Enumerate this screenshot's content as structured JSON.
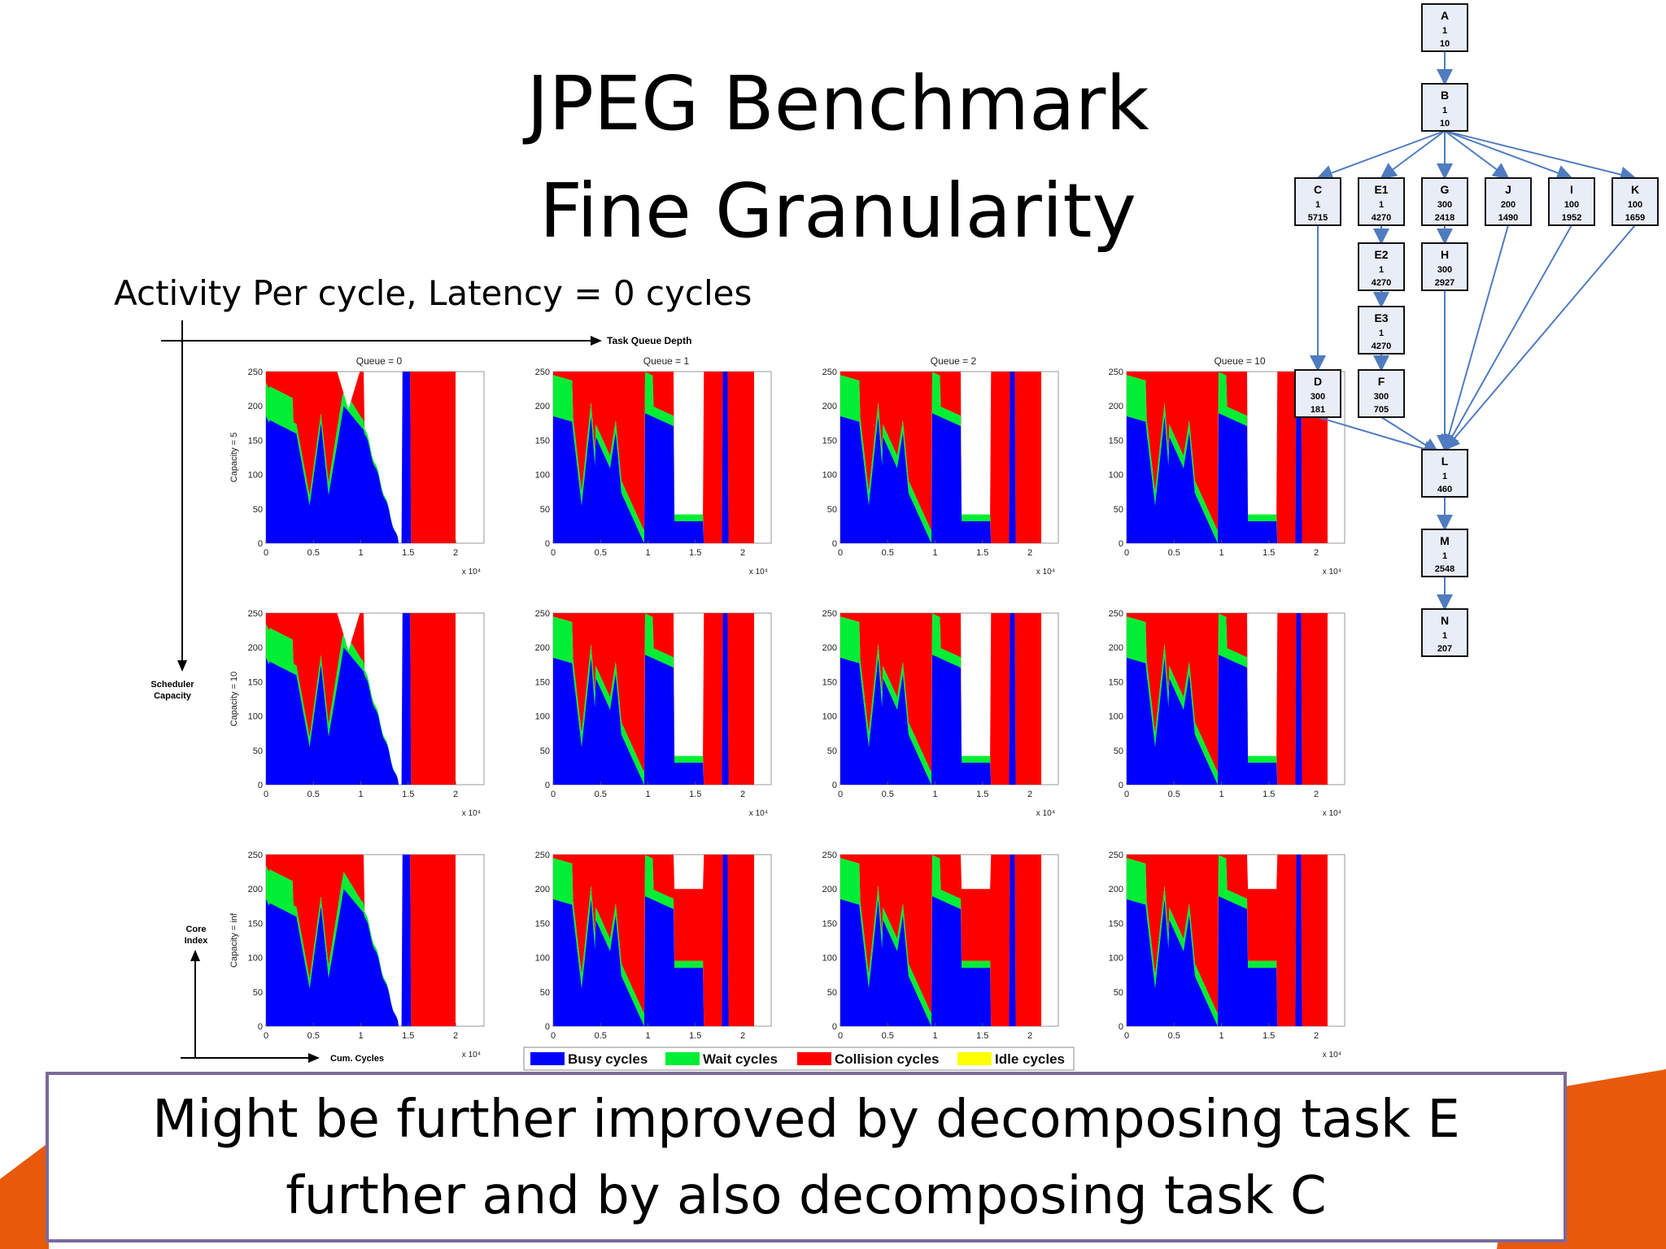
{
  "slide": {
    "title_line1": "JPEG Benchmark",
    "title_line2": "Fine Granularity",
    "subtitle": "Activity Per cycle, Latency = 0 cycles",
    "note_line1": "Might be further improved by decomposing task E",
    "note_line2": "further and by also decomposing task C",
    "decor_color": "#e8590c"
  },
  "figure": {
    "top_axis_label": "Task Queue Depth",
    "left_axis_label_line1": "Scheduler",
    "left_axis_label_line2": "Capacity",
    "corner_y_line1": "Core",
    "corner_y_line2": "Index",
    "corner_x": "Cum. Cycles"
  },
  "chart_data": {
    "type": "area",
    "grid_columns": [
      "Queue = 0",
      "Queue = 1",
      "Queue = 2",
      "Queue = 10"
    ],
    "grid_rows": [
      "Capacity = 5",
      "Capacity = 10",
      "Capacity = inf"
    ],
    "y_ticks": [
      "0",
      "50",
      "100",
      "150",
      "200",
      "250"
    ],
    "x_ticks": [
      "0",
      "0.5",
      "1",
      "1.5",
      "2"
    ],
    "x_exponent": "x 10⁴",
    "ylim": [
      0,
      250
    ],
    "xlim": [
      0,
      2.3
    ],
    "legend": [
      {
        "name": "Busy cycles",
        "color": "#0000ff"
      },
      {
        "name": "Wait cycles",
        "color": "#00ee33"
      },
      {
        "name": "Collision cycles",
        "color": "#ff0000"
      },
      {
        "name": "Idle cycles",
        "color": "#ffff00"
      }
    ],
    "legend_position": "bottom"
  },
  "task_graph": {
    "nodes": [
      {
        "id": "A",
        "v1": "1",
        "v2": "10"
      },
      {
        "id": "B",
        "v1": "1",
        "v2": "10"
      },
      {
        "id": "C",
        "v1": "1",
        "v2": "5715"
      },
      {
        "id": "E1",
        "v1": "1",
        "v2": "4270"
      },
      {
        "id": "G",
        "v1": "300",
        "v2": "2418"
      },
      {
        "id": "J",
        "v1": "200",
        "v2": "1490"
      },
      {
        "id": "I",
        "v1": "100",
        "v2": "1952"
      },
      {
        "id": "K",
        "v1": "100",
        "v2": "1659"
      },
      {
        "id": "E2",
        "v1": "1",
        "v2": "4270"
      },
      {
        "id": "H",
        "v1": "300",
        "v2": "2927"
      },
      {
        "id": "E3",
        "v1": "1",
        "v2": "4270"
      },
      {
        "id": "D",
        "v1": "300",
        "v2": "181"
      },
      {
        "id": "F",
        "v1": "300",
        "v2": "705"
      },
      {
        "id": "L",
        "v1": "1",
        "v2": "460"
      },
      {
        "id": "M",
        "v1": "1",
        "v2": "2548"
      },
      {
        "id": "N",
        "v1": "1",
        "v2": "207"
      }
    ],
    "edges": [
      [
        "A",
        "B"
      ],
      [
        "B",
        "C"
      ],
      [
        "B",
        "E1"
      ],
      [
        "B",
        "G"
      ],
      [
        "B",
        "J"
      ],
      [
        "B",
        "I"
      ],
      [
        "B",
        "K"
      ],
      [
        "E1",
        "E2"
      ],
      [
        "E2",
        "E3"
      ],
      [
        "E3",
        "F"
      ],
      [
        "G",
        "H"
      ],
      [
        "C",
        "D"
      ],
      [
        "D",
        "L"
      ],
      [
        "F",
        "L"
      ],
      [
        "H",
        "L"
      ],
      [
        "J",
        "L"
      ],
      [
        "I",
        "L"
      ],
      [
        "K",
        "L"
      ],
      [
        "L",
        "M"
      ],
      [
        "M",
        "N"
      ]
    ],
    "node_fill": "#e9edf7",
    "edge_color": "#4f7cc0"
  }
}
